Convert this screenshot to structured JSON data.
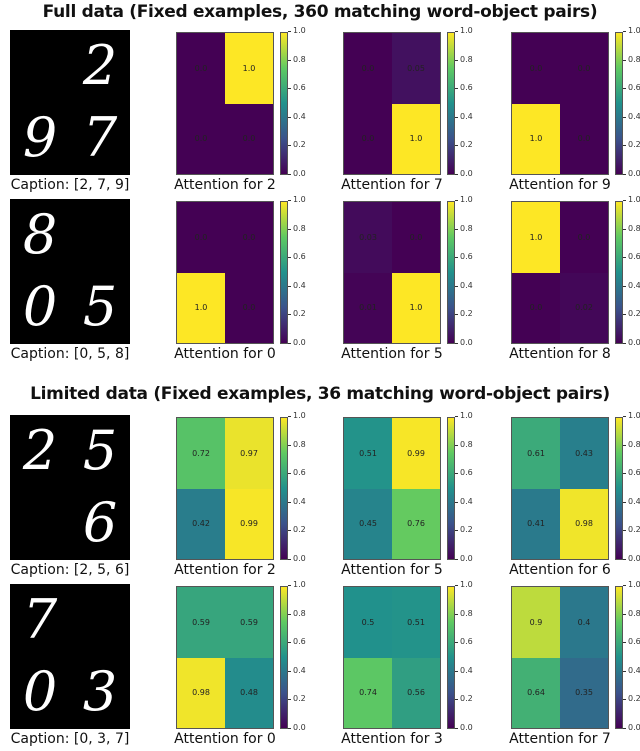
{
  "sections": [
    {
      "title": "Full data (Fixed examples, 360 matching word-object pairs)"
    },
    {
      "title": "Limited data (Fixed examples, 36 matching word-object pairs)"
    }
  ],
  "chart_data": {
    "type": "heatmap",
    "colormap": "viridis",
    "colorbar": {
      "range": [
        0,
        1
      ],
      "ticks": [
        "0.0",
        "0.2",
        "0.4",
        "0.6",
        "0.8",
        "1.0"
      ]
    },
    "rows": [
      {
        "caption": "Caption: [2, 7, 9]",
        "digits": [
          [
            "",
            "2"
          ],
          [
            "9",
            "7"
          ]
        ],
        "maps": [
          {
            "label": "Attention for 2",
            "values": [
              [
                0.0,
                1.0
              ],
              [
                0.0,
                0.0
              ]
            ],
            "text": [
              [
                "0.0",
                "1.0"
              ],
              [
                "0.0",
                "0.0"
              ]
            ]
          },
          {
            "label": "Attention for 7",
            "values": [
              [
                0.0,
                0.05
              ],
              [
                0.0,
                1.0
              ]
            ],
            "text": [
              [
                "0.0",
                "0.05"
              ],
              [
                "0.0",
                "1.0"
              ]
            ]
          },
          {
            "label": "Attention for 9",
            "values": [
              [
                0.0,
                0.0
              ],
              [
                1.0,
                0.0
              ]
            ],
            "text": [
              [
                "0.0",
                "0.0"
              ],
              [
                "1.0",
                "0.0"
              ]
            ]
          }
        ]
      },
      {
        "caption": "Caption: [0, 5, 8]",
        "digits": [
          [
            "8",
            ""
          ],
          [
            "0",
            "5"
          ]
        ],
        "maps": [
          {
            "label": "Attention for 0",
            "values": [
              [
                0.0,
                0.0
              ],
              [
                1.0,
                0.0
              ]
            ],
            "text": [
              [
                "0.0",
                "0.0"
              ],
              [
                "1.0",
                "0.0"
              ]
            ]
          },
          {
            "label": "Attention for 5",
            "values": [
              [
                0.03,
                0.0
              ],
              [
                0.01,
                1.0
              ]
            ],
            "text": [
              [
                "0.03",
                "0.0"
              ],
              [
                "0.01",
                "1.0"
              ]
            ]
          },
          {
            "label": "Attention for 8",
            "values": [
              [
                1.0,
                0.0
              ],
              [
                0.0,
                0.02
              ]
            ],
            "text": [
              [
                "1.0",
                "0.0"
              ],
              [
                "0.0",
                "0.02"
              ]
            ]
          }
        ]
      },
      {
        "caption": "Caption: [2, 5, 6]",
        "digits": [
          [
            "2",
            "5"
          ],
          [
            "",
            "6"
          ]
        ],
        "maps": [
          {
            "label": "Attention for 2",
            "values": [
              [
                0.72,
                0.97
              ],
              [
                0.42,
                0.99
              ]
            ],
            "text": [
              [
                "0.72",
                "0.97"
              ],
              [
                "0.42",
                "0.99"
              ]
            ]
          },
          {
            "label": "Attention for 5",
            "values": [
              [
                0.51,
                0.99
              ],
              [
                0.45,
                0.76
              ]
            ],
            "text": [
              [
                "0.51",
                "0.99"
              ],
              [
                "0.45",
                "0.76"
              ]
            ]
          },
          {
            "label": "Attention for 6",
            "values": [
              [
                0.61,
                0.43
              ],
              [
                0.41,
                0.98
              ]
            ],
            "text": [
              [
                "0.61",
                "0.43"
              ],
              [
                "0.41",
                "0.98"
              ]
            ]
          }
        ]
      },
      {
        "caption": "Caption: [0, 3, 7]",
        "digits": [
          [
            "7",
            ""
          ],
          [
            "0",
            "3"
          ]
        ],
        "maps": [
          {
            "label": "Attention for 0",
            "values": [
              [
                0.59,
                0.59
              ],
              [
                0.98,
                0.48
              ]
            ],
            "text": [
              [
                "0.59",
                "0.59"
              ],
              [
                "0.98",
                "0.48"
              ]
            ]
          },
          {
            "label": "Attention for 3",
            "values": [
              [
                0.5,
                0.51
              ],
              [
                0.74,
                0.56
              ]
            ],
            "text": [
              [
                "0.5",
                "0.51"
              ],
              [
                "0.74",
                "0.56"
              ]
            ]
          },
          {
            "label": "Attention for 7",
            "values": [
              [
                0.9,
                0.4
              ],
              [
                0.64,
                0.35
              ]
            ],
            "text": [
              [
                "0.9",
                "0.4"
              ],
              [
                "0.64",
                "0.35"
              ]
            ]
          }
        ]
      }
    ]
  }
}
